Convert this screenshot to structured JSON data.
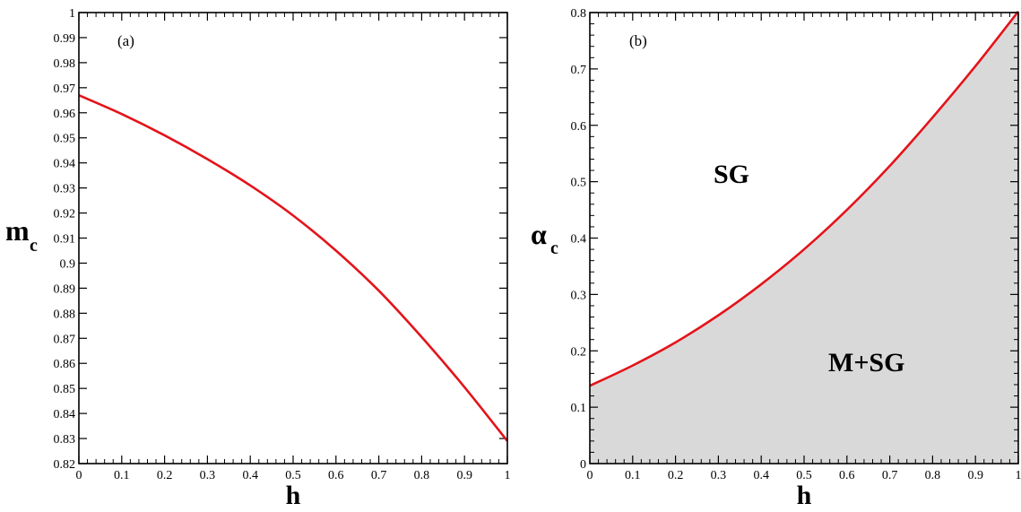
{
  "colors": {
    "curve": "#e3141b",
    "region_fill": "#d9d9d9",
    "axis": "#000000",
    "background": "#ffffff"
  },
  "chart_data": [
    {
      "type": "line",
      "panel_label": "(a)",
      "xlabel": "h",
      "ylabel": {
        "main": "m",
        "sub": "c"
      },
      "xlim": [
        0,
        1
      ],
      "ylim": [
        0.82,
        1
      ],
      "xticks": [
        "0",
        "0.1",
        "0.2",
        "0.3",
        "0.4",
        "0.5",
        "0.6",
        "0.7",
        "0.8",
        "0.9",
        "1"
      ],
      "yticks": [
        "0.82",
        "0.83",
        "0.84",
        "0.85",
        "0.86",
        "0.87",
        "0.88",
        "0.89",
        "0.9",
        "0.91",
        "0.92",
        "0.93",
        "0.94",
        "0.95",
        "0.96",
        "0.97",
        "0.98",
        "0.99",
        "1"
      ],
      "grid": false,
      "series": [
        {
          "x": [
            0,
            0.1,
            0.2,
            0.3,
            0.4,
            0.5,
            0.6,
            0.7,
            0.8,
            0.9,
            1.0
          ],
          "y": [
            0.967,
            0.9595,
            0.951,
            0.9415,
            0.931,
            0.919,
            0.905,
            0.889,
            0.8705,
            0.8505,
            0.829
          ]
        }
      ]
    },
    {
      "type": "area",
      "panel_label": "(b)",
      "xlabel": "h",
      "ylabel": {
        "main": "α",
        "sub": "c"
      },
      "xlim": [
        0,
        1
      ],
      "ylim": [
        0,
        0.8
      ],
      "xticks": [
        "0",
        "0.1",
        "0.2",
        "0.3",
        "0.4",
        "0.5",
        "0.6",
        "0.7",
        "0.8",
        "0.9",
        "1"
      ],
      "yticks": [
        "0",
        "0.1",
        "0.2",
        "0.3",
        "0.4",
        "0.5",
        "0.6",
        "0.7",
        "0.8"
      ],
      "grid": false,
      "region_labels": {
        "above": "SG",
        "below": "M+SG"
      },
      "series": [
        {
          "x": [
            0,
            0.1,
            0.2,
            0.3,
            0.4,
            0.5,
            0.6,
            0.7,
            0.8,
            0.9,
            1.0
          ],
          "y": [
            0.138,
            0.174,
            0.215,
            0.263,
            0.318,
            0.38,
            0.45,
            0.528,
            0.614,
            0.705,
            0.802
          ],
          "fill_below": true
        }
      ]
    }
  ]
}
